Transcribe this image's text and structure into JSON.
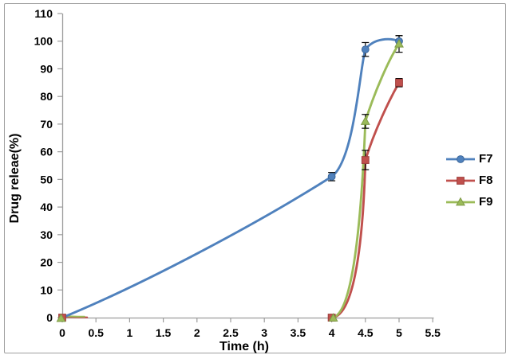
{
  "window": {
    "background": "#FFFFFF",
    "border_color": "#9E9E9E"
  },
  "chart_data": {
    "type": "line",
    "title": "",
    "xlabel": "Time (h)",
    "ylabel": "Drug releae(%)",
    "xlim": [
      0,
      5.5
    ],
    "ylim": [
      0,
      110
    ],
    "xticks": [
      0,
      0.5,
      1,
      1.5,
      2,
      2.5,
      3,
      3.5,
      4,
      4.5,
      5,
      5.5
    ],
    "yticks": [
      0,
      10,
      20,
      30,
      40,
      50,
      60,
      70,
      80,
      90,
      100,
      110
    ],
    "grid": false,
    "axis_color": "#9C9C9C",
    "tick_label_color": "#000000",
    "error_bar_color": "#000000",
    "legend_position": "middle-right",
    "series": [
      {
        "name": "F7",
        "color": "#4F81BD",
        "marker_stroke": "#3C679A",
        "marker": "circle",
        "points": [
          {
            "x": 0,
            "y": 0,
            "err": 0
          },
          {
            "x": 4,
            "y": 51,
            "err": 1.5
          },
          {
            "x": 4.5,
            "y": 97,
            "err": 2.5
          },
          {
            "x": 5,
            "y": 100,
            "err": 2
          }
        ]
      },
      {
        "name": "F8",
        "color": "#C0504D",
        "marker_stroke": "#9E3F3C",
        "marker": "square",
        "points": [
          {
            "x": 0,
            "y": 0,
            "err": 0
          },
          {
            "x": 4,
            "y": 0,
            "err": 0
          },
          {
            "x": 4.5,
            "y": 57,
            "err": 3.5
          },
          {
            "x": 5,
            "y": 85,
            "err": 1.5
          }
        ]
      },
      {
        "name": "F9",
        "color": "#9BBB59",
        "marker_stroke": "#7E9A45",
        "marker": "triangle",
        "points": [
          {
            "x": 0,
            "y": 0,
            "err": 0
          },
          {
            "x": 4,
            "y": 0,
            "err": 0
          },
          {
            "x": 4.5,
            "y": 71,
            "err": 2.5
          },
          {
            "x": 5,
            "y": 99,
            "err": 3
          }
        ]
      }
    ]
  },
  "legend": {
    "items": [
      {
        "label": "F7"
      },
      {
        "label": "F8"
      },
      {
        "label": "F9"
      }
    ]
  }
}
